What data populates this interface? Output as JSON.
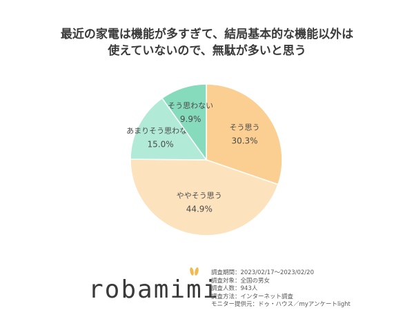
{
  "title_lines": [
    "最近の家電は機能が多すぎて、結局基本的な機能以外は",
    "使えていないので、無駄が多いと思う"
  ],
  "chart_data": {
    "type": "pie",
    "start": "12 o'clock, clockwise",
    "slices": [
      {
        "label": "そう思う",
        "value": 30.3,
        "display": "30.3%",
        "color": "#fbcf92"
      },
      {
        "label": "ややそう思う",
        "value": 44.9,
        "display": "44.9%",
        "color": "#fde3bd"
      },
      {
        "label": "あまりそう思わない",
        "value": 15.0,
        "display": "15.0%",
        "color": "#b2ead8"
      },
      {
        "label": "そう思わない",
        "value": 9.9,
        "display": "9.9%",
        "color": "#86dbbd"
      }
    ]
  },
  "info": [
    "調査期間：2023/02/17～2023/02/20",
    "調査対象：全国の男女",
    "調査人数：943人",
    "調査方法：インターネット調査",
    "モニター提供元：ドゥ・ハウス／myアンケートlight"
  ],
  "logo": "robamimi",
  "logo_color": "#f3b94a"
}
